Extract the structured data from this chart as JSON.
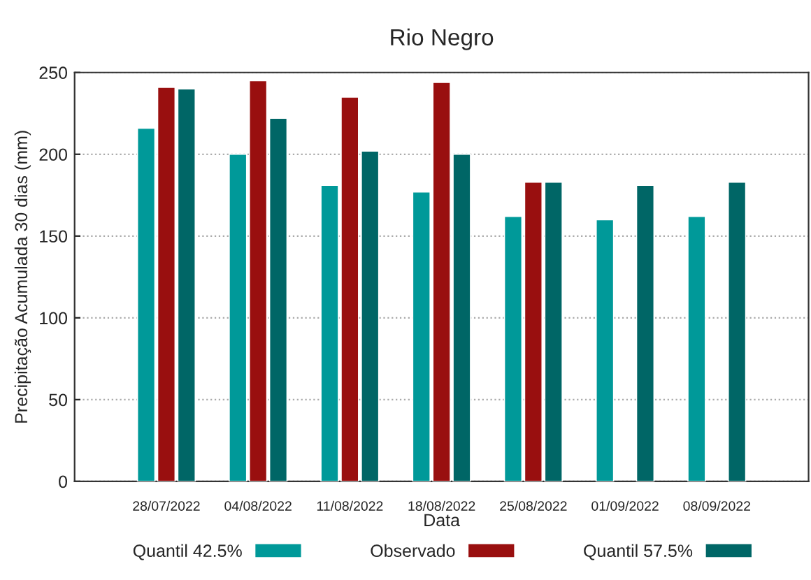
{
  "chart_data": {
    "type": "bar",
    "title": "Rio Negro",
    "xlabel": "Data",
    "ylabel": "Precipitação Acumulada 30 dias (mm)",
    "categories": [
      "28/07/2022",
      "04/08/2022",
      "11/08/2022",
      "18/08/2022",
      "25/08/2022",
      "01/09/2022",
      "08/09/2022"
    ],
    "series": [
      {
        "name": "Quantil 42.5%",
        "color": "#009999",
        "values": [
          216,
          200,
          181,
          177,
          162,
          160,
          162
        ]
      },
      {
        "name": "Observado",
        "color": "#990f0f",
        "values": [
          241,
          245,
          235,
          244,
          183,
          null,
          null
        ]
      },
      {
        "name": "Quantil 57.5%",
        "color": "#006666",
        "values": [
          240,
          222,
          202,
          200,
          183,
          181,
          183
        ]
      }
    ],
    "ylim": [
      0,
      250
    ],
    "yticks": [
      0,
      50,
      100,
      150,
      200,
      250
    ],
    "grid": "y",
    "legend": "bottom"
  }
}
